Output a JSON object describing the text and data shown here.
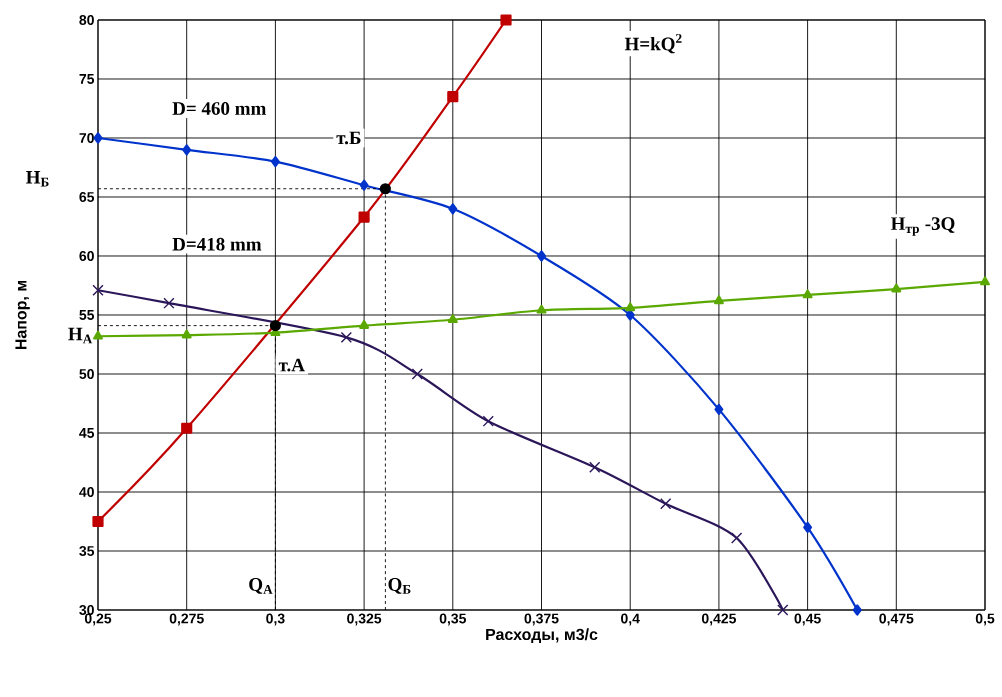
{
  "chart_data": {
    "type": "line",
    "xlabel": "Расходы, м3/с",
    "ylabel": "Напор, м",
    "xlim": [
      0.25,
      0.5
    ],
    "ylim": [
      30,
      80
    ],
    "xticks": [
      {
        "value": 0.25,
        "label": "0,25"
      },
      {
        "value": 0.275,
        "label": "0,275"
      },
      {
        "value": 0.3,
        "label": "0,3"
      },
      {
        "value": 0.325,
        "label": "0,325"
      },
      {
        "value": 0.35,
        "label": "0,35"
      },
      {
        "value": 0.375,
        "label": "0,375"
      },
      {
        "value": 0.4,
        "label": "0,4"
      },
      {
        "value": 0.425,
        "label": "0,425"
      },
      {
        "value": 0.45,
        "label": "0,45"
      },
      {
        "value": 0.475,
        "label": "0,475"
      },
      {
        "value": 0.5,
        "label": "0,5"
      }
    ],
    "yticks": [
      30,
      35,
      40,
      45,
      50,
      55,
      60,
      65,
      70,
      75,
      80
    ],
    "grid": true,
    "series": [
      {
        "color": "#0033cc",
        "marker": "diamond",
        "x": [
          0.25,
          0.275,
          0.3,
          0.325,
          0.35,
          0.375,
          0.4,
          0.425,
          0.45,
          0.464
        ],
        "values": [
          70,
          69,
          68,
          66,
          64,
          60,
          55,
          47,
          37,
          30
        ]
      },
      {
        "color": "#2a1659",
        "marker": "cross",
        "x": [
          0.25,
          0.27,
          0.32,
          0.34,
          0.36,
          0.39,
          0.41,
          0.43,
          0.443
        ],
        "values": [
          57.1,
          56,
          53.1,
          50,
          46,
          42.1,
          39,
          36.1,
          30
        ]
      },
      {
        "color": "#c00000",
        "marker": "square",
        "x": [
          0.25,
          0.275,
          0.325,
          0.35,
          0.365
        ],
        "values": [
          37.5,
          45.4,
          63.3,
          73.5,
          80
        ]
      },
      {
        "color": "#5aa800",
        "marker": "triangle",
        "x": [
          0.25,
          0.275,
          0.3,
          0.325,
          0.35,
          0.375,
          0.4,
          0.425,
          0.45,
          0.475,
          0.5
        ],
        "values": [
          53.2,
          53.3,
          53.5,
          54.1,
          54.6,
          55.4,
          55.6,
          56.2,
          56.7,
          57.2,
          57.8
        ]
      },
      {
        "type": "scatter",
        "color": "#000000",
        "marker": "circle",
        "x": [
          0.3,
          0.331
        ],
        "values": [
          54.1,
          65.7
        ]
      }
    ],
    "ref_lines": [
      {
        "axis": "y",
        "value": 65.7,
        "label": "H$_{Б}$",
        "color": "#000000",
        "line_style": "dashed"
      },
      {
        "axis": "y",
        "value": 54.1,
        "label": "H$_{A}$",
        "color": "#000000",
        "line_style": "dashed"
      },
      {
        "axis": "x",
        "value": 0.3,
        "label": "Q$_{A}$",
        "color": "#000000",
        "line_style": "dashed"
      },
      {
        "axis": "x",
        "value": 0.331,
        "label": "Q$_{Б}$",
        "color": "#000000",
        "line_style": "dashed"
      }
    ],
    "annotations": [
      "D= 460 mm",
      "D=418 mm",
      "H=kQ$^{2}$",
      "т.Б",
      "т.А",
      "H$_{тр}$ -3Q"
    ]
  }
}
